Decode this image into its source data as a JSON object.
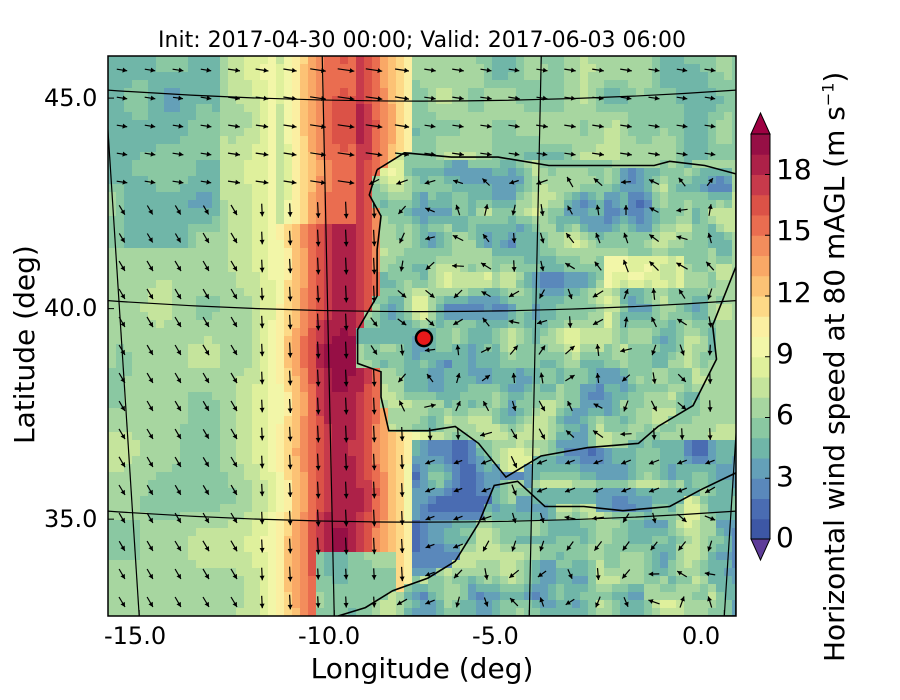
{
  "chart_data": {
    "type": "heatmap",
    "title": "Init: 2017-04-30 00:00; Valid: 2017-06-03 06:00",
    "xlabel": "Longitude (deg)",
    "ylabel": "Latitude (deg)",
    "xlim": [
      -15.8,
      0.3
    ],
    "ylim": [
      32.7,
      46.0
    ],
    "x_ticks": [
      "-15.0",
      "-10.0",
      "-5.0",
      "0.0"
    ],
    "y_ticks": [
      "45.0",
      "40.0",
      "35.0"
    ],
    "colorbar": {
      "label_main": "Horizontal wind speed at 80 mAGL (m s",
      "label_sup": "−1",
      "label_end": ")",
      "ticks": [
        "0",
        "3",
        "6",
        "9",
        "12",
        "15",
        "18"
      ],
      "range": [
        0,
        20
      ],
      "extend": "both",
      "colors": [
        "#3d57a5",
        "#4a6cb2",
        "#5a88bb",
        "#64a0b8",
        "#70b6a8",
        "#8ac8a2",
        "#a7d6a0",
        "#c5e49c",
        "#dff09c",
        "#f2f6a8",
        "#fbefa2",
        "#fdd987",
        "#fcc275",
        "#f9a866",
        "#f38d5c",
        "#ea6d50",
        "#db5247",
        "#c73a4b",
        "#ad2148",
        "#960f45"
      ],
      "under_color": "#5e3c99",
      "over_color": "#9e0142"
    },
    "marker": {
      "lon": -7.7,
      "lat": 39.3,
      "color": "#e8191a"
    }
  }
}
